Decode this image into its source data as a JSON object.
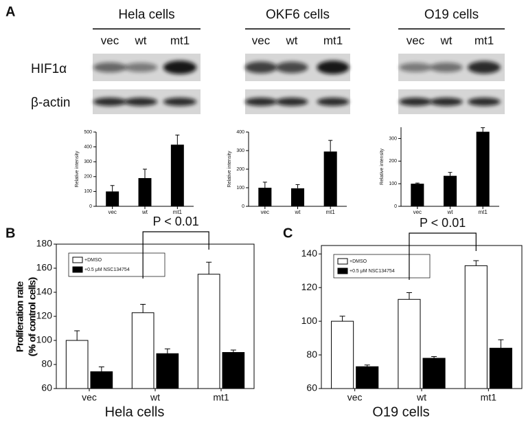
{
  "panels": {
    "a": "A",
    "b": "B",
    "c": "C"
  },
  "blots": {
    "row_labels": [
      "HIF1α",
      "β-actin"
    ],
    "groups": [
      {
        "title": "Hela cells",
        "lanes": [
          "vec",
          "wt",
          "mt1"
        ]
      },
      {
        "title": "OKF6 cells",
        "lanes": [
          "vec",
          "wt",
          "mt1"
        ]
      },
      {
        "title": "O19 cells",
        "lanes": [
          "vec",
          "wt",
          "mt1"
        ]
      }
    ]
  },
  "chart_data": [
    {
      "type": "bar",
      "ylabel": [
        "Relative intensity"
      ],
      "categories": [
        "vec",
        "wt",
        "mt1"
      ],
      "values": [
        100,
        190,
        415
      ],
      "errors": [
        40,
        60,
        65
      ],
      "color": "#000000",
      "ylim": [
        0,
        500
      ],
      "yticks": [
        0,
        100,
        200,
        300,
        400,
        500
      ]
    },
    {
      "type": "bar",
      "ylabel": [
        "Relative intensity"
      ],
      "categories": [
        "vec",
        "wt",
        "mt1"
      ],
      "values": [
        100,
        97,
        295
      ],
      "errors": [
        30,
        20,
        60
      ],
      "color": "#000000",
      "ylim": [
        0,
        400
      ],
      "yticks": [
        0,
        100,
        200,
        300,
        400
      ]
    },
    {
      "type": "bar",
      "ylabel": [
        "Relative intensity"
      ],
      "categories": [
        "vec",
        "wt",
        "mt1"
      ],
      "values": [
        100,
        135,
        330
      ],
      "errors": [
        3,
        15,
        18
      ],
      "color": "#000000",
      "ylim": [
        0,
        350
      ],
      "yticks": [
        0,
        100,
        200,
        300
      ]
    },
    {
      "type": "bar",
      "ylabel": [
        "Proliferation rate",
        "(% of control cells)"
      ],
      "xlabel": "Hela cells",
      "annotation": "P < 0.01",
      "categories": [
        "vec",
        "wt",
        "mt1"
      ],
      "series": [
        {
          "name": "+DMSO",
          "color": "#ffffff",
          "values": [
            100,
            123,
            155
          ],
          "errors": [
            8,
            7,
            10
          ]
        },
        {
          "name": "+0.5 μM NSC134754",
          "color": "#000000",
          "values": [
            74,
            89,
            90
          ],
          "errors": [
            4,
            4,
            2
          ]
        }
      ],
      "ylim": [
        60,
        180
      ],
      "yticks": [
        60,
        80,
        100,
        120,
        140,
        160,
        180
      ]
    },
    {
      "type": "bar",
      "ylabel": [
        "Proliferation rate",
        "(% of control cells)"
      ],
      "xlabel": "O19 cells",
      "annotation": "P < 0.01",
      "categories": [
        "vec",
        "wt",
        "mt1"
      ],
      "series": [
        {
          "name": "+DMSO",
          "color": "#ffffff",
          "values": [
            100,
            113,
            133
          ],
          "errors": [
            3,
            4,
            3
          ]
        },
        {
          "name": "+0.5 μM NSC134754",
          "color": "#000000",
          "values": [
            73,
            78,
            84
          ],
          "errors": [
            1,
            1,
            5
          ]
        }
      ],
      "ylim": [
        60,
        145
      ],
      "yticks": [
        60,
        80,
        100,
        120,
        140
      ]
    }
  ]
}
